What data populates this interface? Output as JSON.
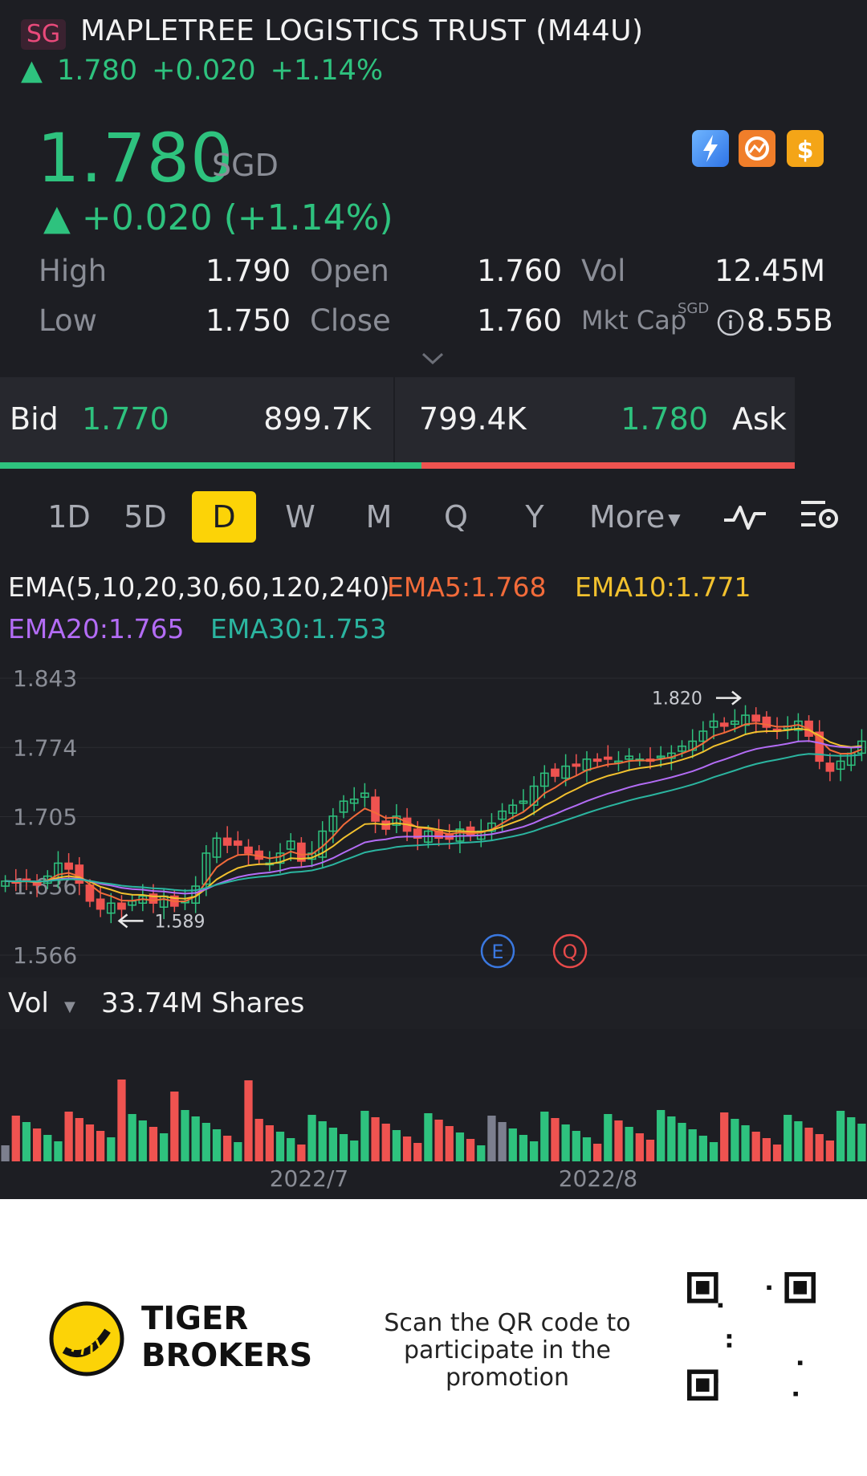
{
  "header": {
    "region_badge": "SG",
    "stock_name": "MAPLETREE LOGISTICS TRUST (M44U)",
    "sub_price": "1.780",
    "sub_change": "+0.020",
    "sub_pct": "+1.14%"
  },
  "quote": {
    "price": "1.780",
    "currency": "SGD",
    "change_line": "+0.020 (+1.14%)",
    "high_label": "High",
    "high": "1.790",
    "low_label": "Low",
    "low": "1.750",
    "open_label": "Open",
    "open": "1.760",
    "close_label": "Close",
    "close": "1.760",
    "vol_label": "Vol",
    "vol": "12.45M",
    "mktcap_label": "Mkt Cap",
    "mktcap_currency": "SGD",
    "mktcap": "8.55B"
  },
  "bidask": {
    "bid_label": "Bid",
    "bid_price": "1.770",
    "bid_size": "899.7K",
    "ask_size": "799.4K",
    "ask_price": "1.780",
    "ask_label": "Ask",
    "bid_fraction": 0.53
  },
  "periods": [
    "1D",
    "5D",
    "D",
    "W",
    "M",
    "Q",
    "Y",
    "More"
  ],
  "selected_period": "D",
  "ema": {
    "title": "EMA(5,10,20,30,60,120,240)",
    "ema5": "EMA5:1.768",
    "ema10": "EMA10:1.771",
    "ema20": "EMA20:1.765",
    "ema30": "EMA30:1.753",
    "colors": {
      "ema5": "#f26b3a",
      "ema10": "#f2c12e",
      "ema20": "#b36cf5",
      "ema30": "#2bb5a0"
    }
  },
  "chart_data": {
    "type": "candlestick",
    "y_ticks": [
      "1.843",
      "1.774",
      "1.705",
      "1.636",
      "1.566"
    ],
    "ylim": [
      1.566,
      1.843
    ],
    "high_marker": "1.820",
    "low_marker": "1.589",
    "event_markers": [
      "E",
      "Q"
    ],
    "closes": [
      1.64,
      1.638,
      1.641,
      1.636,
      1.645,
      1.658,
      1.652,
      1.638,
      1.62,
      1.612,
      1.618,
      1.612,
      1.62,
      1.625,
      1.618,
      1.625,
      1.615,
      1.62,
      1.635,
      1.668,
      1.683,
      1.676,
      1.676,
      1.668,
      1.662,
      1.658,
      1.668,
      1.68,
      1.66,
      1.668,
      1.69,
      1.705,
      1.72,
      1.722,
      1.728,
      1.7,
      1.692,
      1.705,
      1.69,
      1.683,
      1.69,
      1.683,
      1.682,
      1.692,
      1.686,
      1.69,
      1.698,
      1.71,
      1.716,
      1.72,
      1.735,
      1.748,
      1.745,
      1.755,
      1.755,
      1.762,
      1.76,
      1.762,
      1.76,
      1.765,
      1.762,
      1.76,
      1.765,
      1.768,
      1.775,
      1.78,
      1.79,
      1.8,
      1.795,
      1.8,
      1.806,
      1.8,
      1.794,
      1.79,
      1.795,
      1.8,
      1.785,
      1.76,
      1.75,
      1.76,
      1.768,
      1.78
    ],
    "volume_label": "Vol",
    "volume_total": "33.74M Shares",
    "x_labels": [
      "2022/7",
      "2022/8"
    ]
  },
  "footer": {
    "brand_line1": "TIGER",
    "brand_line2": "BROKERS",
    "promo_line1": "Scan the QR code to",
    "promo_line2": "participate in the promotion"
  }
}
